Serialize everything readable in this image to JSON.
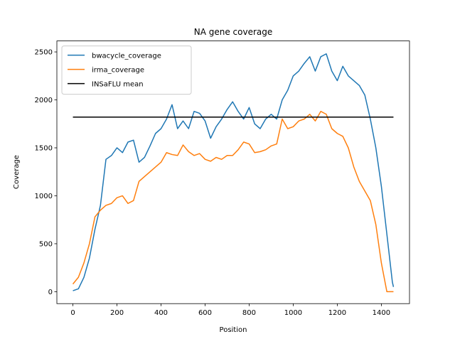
{
  "chart_data": {
    "type": "line",
    "title": "NA gene coverage",
    "xlabel": "Position",
    "ylabel": "Coverage",
    "x": [
      0,
      25,
      50,
      75,
      100,
      125,
      150,
      175,
      200,
      225,
      250,
      275,
      300,
      325,
      350,
      375,
      400,
      425,
      450,
      475,
      500,
      525,
      550,
      575,
      600,
      625,
      650,
      675,
      700,
      725,
      750,
      775,
      800,
      825,
      850,
      875,
      900,
      925,
      950,
      975,
      1000,
      1025,
      1050,
      1075,
      1100,
      1125,
      1150,
      1175,
      1200,
      1225,
      1250,
      1275,
      1300,
      1325,
      1350,
      1375,
      1400,
      1425,
      1450,
      1455
    ],
    "series": [
      {
        "name": "bwacycle_coverage",
        "color": "#1f77b4",
        "values": [
          10,
          30,
          150,
          350,
          650,
          900,
          1380,
          1420,
          1500,
          1450,
          1560,
          1580,
          1350,
          1400,
          1520,
          1650,
          1700,
          1800,
          1950,
          1700,
          1780,
          1700,
          1880,
          1860,
          1780,
          1600,
          1720,
          1800,
          1900,
          1980,
          1880,
          1800,
          1920,
          1750,
          1700,
          1800,
          1850,
          1800,
          2000,
          2100,
          2250,
          2300,
          2380,
          2450,
          2300,
          2450,
          2480,
          2300,
          2200,
          2350,
          2250,
          2200,
          2150,
          2050,
          1800,
          1500,
          1100,
          600,
          100,
          50
        ]
      },
      {
        "name": "irma_coverage",
        "color": "#ff7f0e",
        "values": [
          80,
          150,
          300,
          500,
          780,
          850,
          900,
          920,
          980,
          1000,
          920,
          950,
          1150,
          1200,
          1250,
          1300,
          1350,
          1450,
          1430,
          1420,
          1530,
          1460,
          1420,
          1440,
          1380,
          1360,
          1400,
          1380,
          1420,
          1420,
          1480,
          1560,
          1540,
          1450,
          1460,
          1480,
          1520,
          1540,
          1800,
          1700,
          1720,
          1780,
          1800,
          1850,
          1780,
          1880,
          1850,
          1700,
          1650,
          1620,
          1500,
          1300,
          1150,
          1050,
          950,
          700,
          300,
          0,
          0,
          0
        ]
      },
      {
        "name": "INSaFLU mean",
        "color": "#000000",
        "x": [
          0,
          1455
        ],
        "values": [
          1820,
          1820
        ]
      }
    ],
    "xlim": [
      -72.75,
      1527.75
    ],
    "ylim": [
      -124.5,
      2614.5
    ],
    "xticks": [
      0,
      200,
      400,
      600,
      800,
      1000,
      1200,
      1400
    ],
    "yticks": [
      0,
      500,
      1000,
      1500,
      2000,
      2500
    ],
    "legend": "upper left"
  }
}
